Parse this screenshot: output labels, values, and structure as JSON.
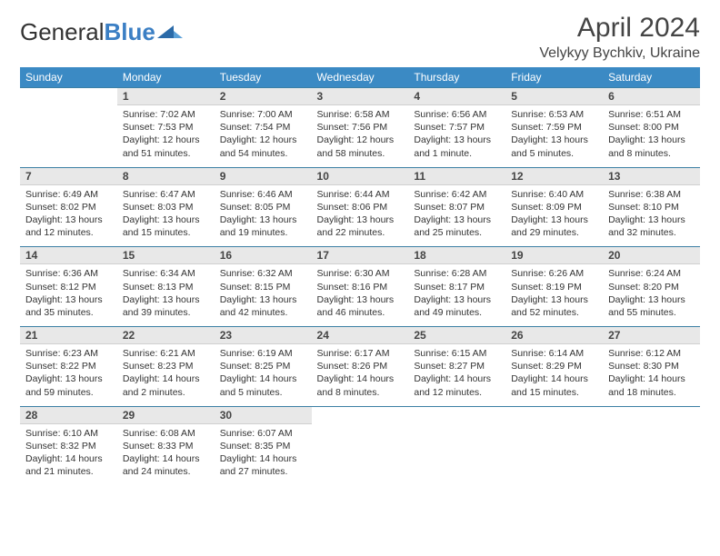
{
  "logo": {
    "part1": "General",
    "part2": "Blue"
  },
  "title": "April 2024",
  "location": "Velykyy Bychkiv, Ukraine",
  "day_headers": [
    "Sunday",
    "Monday",
    "Tuesday",
    "Wednesday",
    "Thursday",
    "Friday",
    "Saturday"
  ],
  "colors": {
    "header_bg": "#3b8ac4",
    "header_text": "#ffffff",
    "daynum_bg": "#e8e8e8",
    "border_top": "#3b7fa4",
    "text": "#333333"
  },
  "weeks": [
    [
      {
        "n": "",
        "empty": true
      },
      {
        "n": "1",
        "sunrise": "Sunrise: 7:02 AM",
        "sunset": "Sunset: 7:53 PM",
        "dl1": "Daylight: 12 hours",
        "dl2": "and 51 minutes."
      },
      {
        "n": "2",
        "sunrise": "Sunrise: 7:00 AM",
        "sunset": "Sunset: 7:54 PM",
        "dl1": "Daylight: 12 hours",
        "dl2": "and 54 minutes."
      },
      {
        "n": "3",
        "sunrise": "Sunrise: 6:58 AM",
        "sunset": "Sunset: 7:56 PM",
        "dl1": "Daylight: 12 hours",
        "dl2": "and 58 minutes."
      },
      {
        "n": "4",
        "sunrise": "Sunrise: 6:56 AM",
        "sunset": "Sunset: 7:57 PM",
        "dl1": "Daylight: 13 hours",
        "dl2": "and 1 minute."
      },
      {
        "n": "5",
        "sunrise": "Sunrise: 6:53 AM",
        "sunset": "Sunset: 7:59 PM",
        "dl1": "Daylight: 13 hours",
        "dl2": "and 5 minutes."
      },
      {
        "n": "6",
        "sunrise": "Sunrise: 6:51 AM",
        "sunset": "Sunset: 8:00 PM",
        "dl1": "Daylight: 13 hours",
        "dl2": "and 8 minutes."
      }
    ],
    [
      {
        "n": "7",
        "sunrise": "Sunrise: 6:49 AM",
        "sunset": "Sunset: 8:02 PM",
        "dl1": "Daylight: 13 hours",
        "dl2": "and 12 minutes."
      },
      {
        "n": "8",
        "sunrise": "Sunrise: 6:47 AM",
        "sunset": "Sunset: 8:03 PM",
        "dl1": "Daylight: 13 hours",
        "dl2": "and 15 minutes."
      },
      {
        "n": "9",
        "sunrise": "Sunrise: 6:46 AM",
        "sunset": "Sunset: 8:05 PM",
        "dl1": "Daylight: 13 hours",
        "dl2": "and 19 minutes."
      },
      {
        "n": "10",
        "sunrise": "Sunrise: 6:44 AM",
        "sunset": "Sunset: 8:06 PM",
        "dl1": "Daylight: 13 hours",
        "dl2": "and 22 minutes."
      },
      {
        "n": "11",
        "sunrise": "Sunrise: 6:42 AM",
        "sunset": "Sunset: 8:07 PM",
        "dl1": "Daylight: 13 hours",
        "dl2": "and 25 minutes."
      },
      {
        "n": "12",
        "sunrise": "Sunrise: 6:40 AM",
        "sunset": "Sunset: 8:09 PM",
        "dl1": "Daylight: 13 hours",
        "dl2": "and 29 minutes."
      },
      {
        "n": "13",
        "sunrise": "Sunrise: 6:38 AM",
        "sunset": "Sunset: 8:10 PM",
        "dl1": "Daylight: 13 hours",
        "dl2": "and 32 minutes."
      }
    ],
    [
      {
        "n": "14",
        "sunrise": "Sunrise: 6:36 AM",
        "sunset": "Sunset: 8:12 PM",
        "dl1": "Daylight: 13 hours",
        "dl2": "and 35 minutes."
      },
      {
        "n": "15",
        "sunrise": "Sunrise: 6:34 AM",
        "sunset": "Sunset: 8:13 PM",
        "dl1": "Daylight: 13 hours",
        "dl2": "and 39 minutes."
      },
      {
        "n": "16",
        "sunrise": "Sunrise: 6:32 AM",
        "sunset": "Sunset: 8:15 PM",
        "dl1": "Daylight: 13 hours",
        "dl2": "and 42 minutes."
      },
      {
        "n": "17",
        "sunrise": "Sunrise: 6:30 AM",
        "sunset": "Sunset: 8:16 PM",
        "dl1": "Daylight: 13 hours",
        "dl2": "and 46 minutes."
      },
      {
        "n": "18",
        "sunrise": "Sunrise: 6:28 AM",
        "sunset": "Sunset: 8:17 PM",
        "dl1": "Daylight: 13 hours",
        "dl2": "and 49 minutes."
      },
      {
        "n": "19",
        "sunrise": "Sunrise: 6:26 AM",
        "sunset": "Sunset: 8:19 PM",
        "dl1": "Daylight: 13 hours",
        "dl2": "and 52 minutes."
      },
      {
        "n": "20",
        "sunrise": "Sunrise: 6:24 AM",
        "sunset": "Sunset: 8:20 PM",
        "dl1": "Daylight: 13 hours",
        "dl2": "and 55 minutes."
      }
    ],
    [
      {
        "n": "21",
        "sunrise": "Sunrise: 6:23 AM",
        "sunset": "Sunset: 8:22 PM",
        "dl1": "Daylight: 13 hours",
        "dl2": "and 59 minutes."
      },
      {
        "n": "22",
        "sunrise": "Sunrise: 6:21 AM",
        "sunset": "Sunset: 8:23 PM",
        "dl1": "Daylight: 14 hours",
        "dl2": "and 2 minutes."
      },
      {
        "n": "23",
        "sunrise": "Sunrise: 6:19 AM",
        "sunset": "Sunset: 8:25 PM",
        "dl1": "Daylight: 14 hours",
        "dl2": "and 5 minutes."
      },
      {
        "n": "24",
        "sunrise": "Sunrise: 6:17 AM",
        "sunset": "Sunset: 8:26 PM",
        "dl1": "Daylight: 14 hours",
        "dl2": "and 8 minutes."
      },
      {
        "n": "25",
        "sunrise": "Sunrise: 6:15 AM",
        "sunset": "Sunset: 8:27 PM",
        "dl1": "Daylight: 14 hours",
        "dl2": "and 12 minutes."
      },
      {
        "n": "26",
        "sunrise": "Sunrise: 6:14 AM",
        "sunset": "Sunset: 8:29 PM",
        "dl1": "Daylight: 14 hours",
        "dl2": "and 15 minutes."
      },
      {
        "n": "27",
        "sunrise": "Sunrise: 6:12 AM",
        "sunset": "Sunset: 8:30 PM",
        "dl1": "Daylight: 14 hours",
        "dl2": "and 18 minutes."
      }
    ],
    [
      {
        "n": "28",
        "sunrise": "Sunrise: 6:10 AM",
        "sunset": "Sunset: 8:32 PM",
        "dl1": "Daylight: 14 hours",
        "dl2": "and 21 minutes."
      },
      {
        "n": "29",
        "sunrise": "Sunrise: 6:08 AM",
        "sunset": "Sunset: 8:33 PM",
        "dl1": "Daylight: 14 hours",
        "dl2": "and 24 minutes."
      },
      {
        "n": "30",
        "sunrise": "Sunrise: 6:07 AM",
        "sunset": "Sunset: 8:35 PM",
        "dl1": "Daylight: 14 hours",
        "dl2": "and 27 minutes."
      },
      {
        "n": "",
        "empty": true
      },
      {
        "n": "",
        "empty": true
      },
      {
        "n": "",
        "empty": true
      },
      {
        "n": "",
        "empty": true
      }
    ]
  ]
}
